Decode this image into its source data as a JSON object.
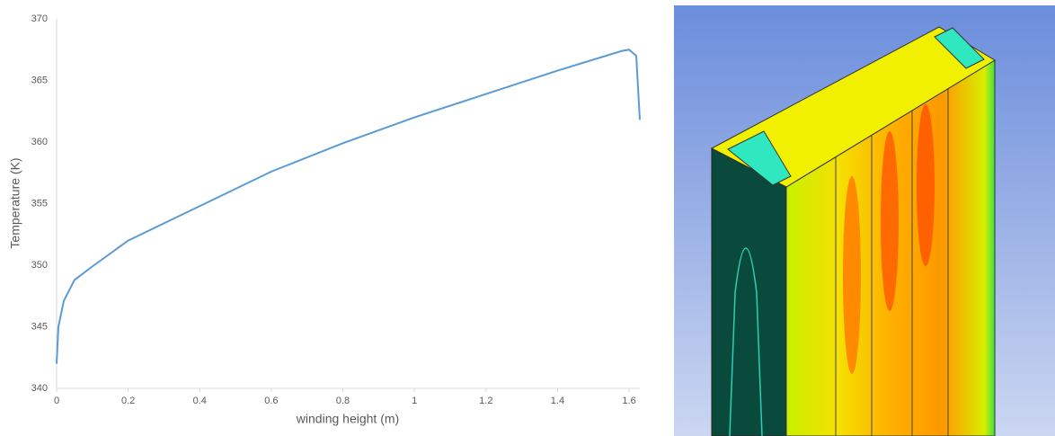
{
  "chart_data": {
    "type": "line",
    "x_label": "winding height (m)",
    "y_label": "Temperature (K)",
    "x": [
      0,
      0.005,
      0.02,
      0.05,
      0.1,
      0.2,
      0.4,
      0.6,
      0.8,
      1.0,
      1.2,
      1.4,
      1.58,
      1.6,
      1.62,
      1.63
    ],
    "values": [
      342,
      345,
      347.1,
      348.8,
      349.9,
      352,
      354.8,
      357.6,
      359.9,
      362,
      363.9,
      365.8,
      367.4,
      367.5,
      367,
      361.8
    ],
    "color": "#5b9bd5",
    "xlim": [
      0,
      1.63
    ],
    "xticks": [
      0,
      0.2,
      0.4,
      0.6,
      0.8,
      1,
      1.2,
      1.4,
      1.6
    ],
    "ylim": [
      340,
      370
    ],
    "yticks": [
      340,
      345,
      350,
      355,
      360,
      365,
      370
    ],
    "grid": false
  }
}
